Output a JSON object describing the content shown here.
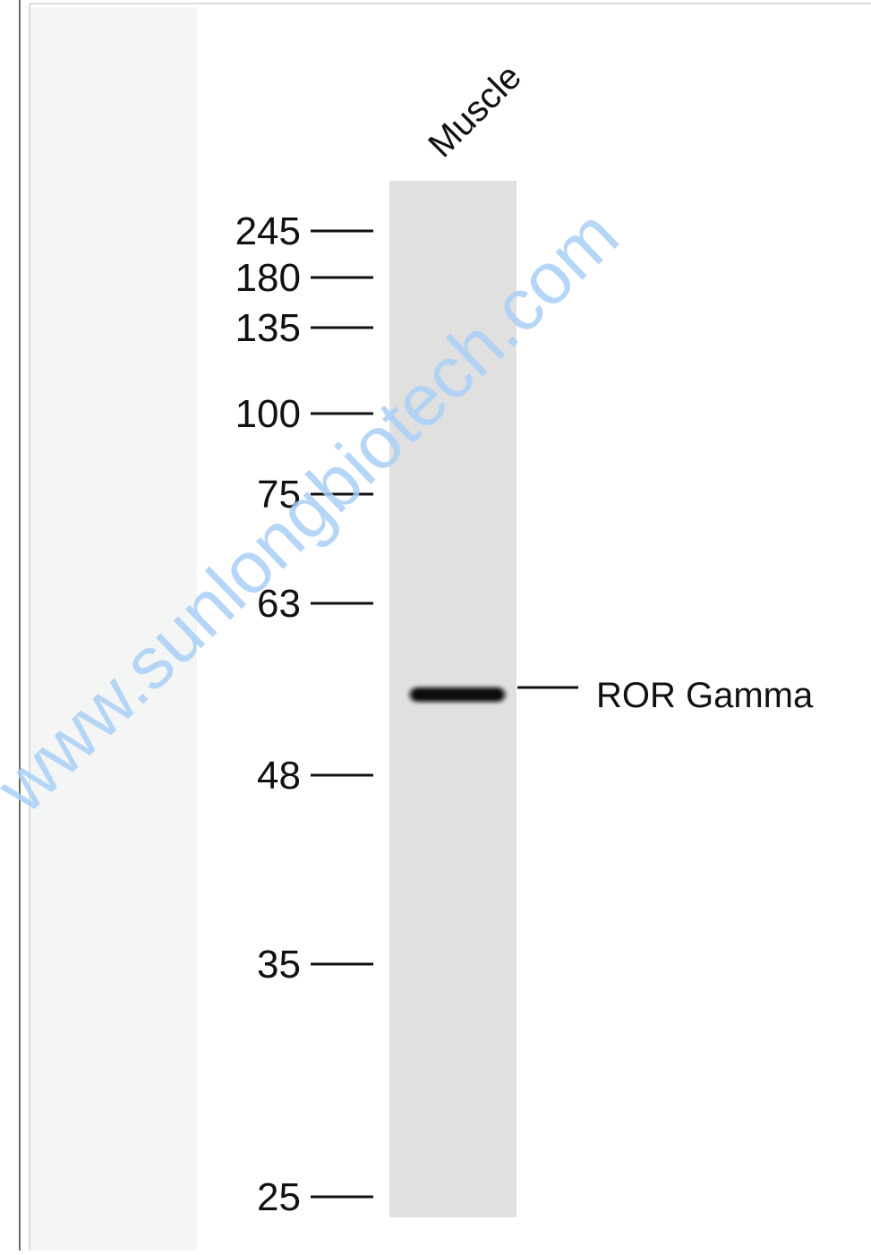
{
  "lane_label": "Muscle",
  "markers": [
    245,
    180,
    135,
    100,
    75,
    63,
    48,
    35,
    25
  ],
  "band_label": "ROR Gamma",
  "watermark": "www.sunlongbiotech.com"
}
